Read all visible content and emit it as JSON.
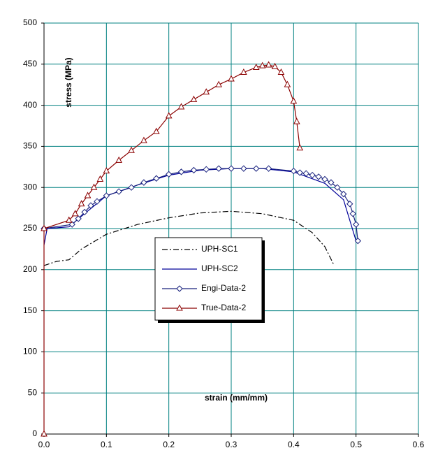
{
  "chart_data": {
    "type": "line",
    "xlabel": "strain (mm/mm)",
    "ylabel": "stress (MPa)",
    "xlim": [
      0,
      0.6
    ],
    "ylim": [
      0,
      500
    ],
    "xticks": [
      {
        "value": 0,
        "label": "0.0"
      },
      {
        "value": 0.1,
        "label": "0.1"
      },
      {
        "value": 0.2,
        "label": "0.2"
      },
      {
        "value": 0.3,
        "label": "0.3"
      },
      {
        "value": 0.4,
        "label": "0.4"
      },
      {
        "value": 0.5,
        "label": "0.5"
      },
      {
        "value": 0.6,
        "label": "0.6"
      }
    ],
    "yticks": [
      0,
      50,
      100,
      150,
      200,
      250,
      300,
      350,
      400,
      450,
      500
    ],
    "grid": true,
    "grid_color": "#008080",
    "series": [
      {
        "name": "UPH-SC1",
        "color": "#000000",
        "dash": "8 3 2 3",
        "marker": null,
        "x": [
          0,
          0.02,
          0.04,
          0.06,
          0.1,
          0.15,
          0.2,
          0.25,
          0.3,
          0.35,
          0.4,
          0.43,
          0.45,
          0.465
        ],
        "values": [
          205,
          210,
          212,
          225,
          243,
          255,
          263,
          269,
          271,
          268,
          260,
          245,
          228,
          205
        ]
      },
      {
        "name": "UPH-SC2",
        "color": "#000099",
        "dash": null,
        "marker": null,
        "x": [
          0,
          0.005,
          0.04,
          0.06,
          0.1,
          0.15,
          0.2,
          0.25,
          0.3,
          0.35,
          0.4,
          0.45,
          0.48,
          0.5
        ],
        "values": [
          230,
          250,
          252,
          265,
          290,
          303,
          315,
          321,
          323,
          323,
          319,
          305,
          285,
          235
        ]
      },
      {
        "name": "Engi-Data-2",
        "color": "#1a237e",
        "dash": null,
        "marker": "diamond",
        "x": [
          0,
          0.045,
          0.055,
          0.065,
          0.075,
          0.085,
          0.1,
          0.12,
          0.14,
          0.16,
          0.18,
          0.2,
          0.22,
          0.24,
          0.26,
          0.28,
          0.3,
          0.32,
          0.34,
          0.36,
          0.4,
          0.41,
          0.42,
          0.43,
          0.44,
          0.45,
          0.46,
          0.47,
          0.48,
          0.49,
          0.495,
          0.5,
          0.503
        ],
        "values": [
          250,
          255,
          262,
          270,
          278,
          283,
          290,
          295,
          300,
          306,
          311,
          316,
          319,
          321,
          322,
          323,
          323,
          323,
          323,
          323,
          320,
          318,
          317,
          315,
          313,
          310,
          306,
          300,
          292,
          280,
          268,
          255,
          235
        ]
      },
      {
        "name": "True-Data-2",
        "color": "#8b0000",
        "dash": null,
        "marker": "triangle",
        "x": [
          0,
          0,
          0.04,
          0.05,
          0.06,
          0.07,
          0.08,
          0.09,
          0.1,
          0.12,
          0.14,
          0.16,
          0.18,
          0.2,
          0.22,
          0.24,
          0.26,
          0.28,
          0.3,
          0.32,
          0.34,
          0.35,
          0.36,
          0.37,
          0.38,
          0.39,
          0.4,
          0.405,
          0.41
        ],
        "values": [
          0,
          250,
          260,
          268,
          280,
          290,
          300,
          310,
          320,
          333,
          345,
          357,
          368,
          387,
          398,
          407,
          416,
          425,
          432,
          440,
          446,
          448,
          449,
          447,
          440,
          425,
          405,
          380,
          348
        ]
      }
    ]
  }
}
